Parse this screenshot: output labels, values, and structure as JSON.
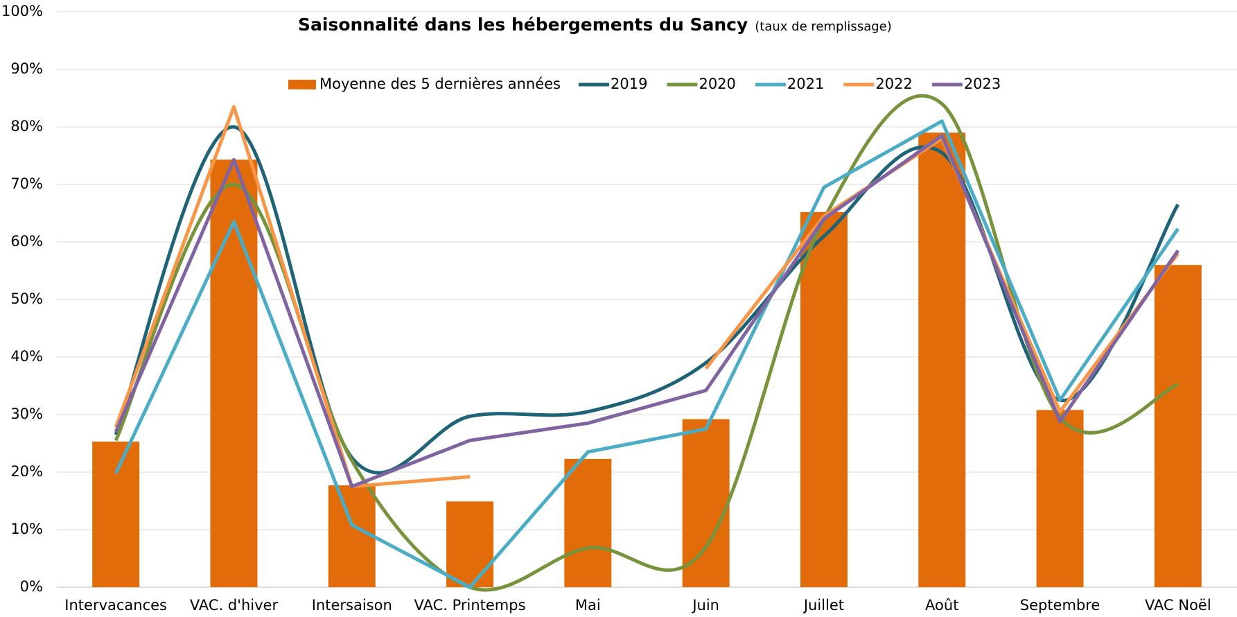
{
  "chart_data": {
    "type": "bar_line",
    "title": "Saisonnalité dans les hébergements du Sancy",
    "subtitle": "(taux de remplissage)",
    "categories": [
      "Intervacances",
      "VAC. d'hiver",
      "Intersaison",
      "VAC. Printemps",
      "Mai",
      "Juin",
      "Juillet",
      "Août",
      "Septembre",
      "VAC Noël"
    ],
    "bar": {
      "name": "Moyenne des 5 dernières années",
      "color": "#e36c0a",
      "values": [
        25.3,
        74.3,
        17.7,
        14.9,
        22.3,
        29.2,
        65.2,
        79.0,
        30.8,
        56.0
      ]
    },
    "series": [
      {
        "name": "2019",
        "color": "#1f6377",
        "smooth": true,
        "values": [
          26.5,
          80,
          22.5,
          29.7,
          30.5,
          39,
          61,
          75.5,
          32.5,
          66.5
        ]
      },
      {
        "name": "2020",
        "color": "#77933c",
        "smooth": true,
        "values": [
          25.5,
          70,
          22,
          0,
          6.8,
          7,
          64,
          84,
          29.5,
          35.2
        ]
      },
      {
        "name": "2021",
        "color": "#4bacc6",
        "smooth": false,
        "values": [
          19.8,
          63.5,
          10.8,
          0,
          23.5,
          27.5,
          69.5,
          81,
          32.5,
          62.3
        ]
      },
      {
        "name": "2022",
        "color": "#f79646",
        "smooth": false,
        "values": [
          27.8,
          83.5,
          17.5,
          19.2,
          null,
          38,
          64.5,
          78,
          30.5,
          58
        ]
      },
      {
        "name": "2023",
        "color": "#8064a2",
        "smooth": false,
        "values": [
          27,
          74.3,
          17.5,
          25.5,
          28.5,
          34.2,
          64,
          78.5,
          28.8,
          58.5
        ]
      }
    ],
    "ylim": [
      0,
      100
    ],
    "yticks": [
      {
        "value": 0,
        "label": "0%"
      },
      {
        "value": 10,
        "label": "10%"
      },
      {
        "value": 20,
        "label": "20%"
      },
      {
        "value": 30,
        "label": "30%"
      },
      {
        "value": 40,
        "label": "40%"
      },
      {
        "value": 50,
        "label": "50%"
      },
      {
        "value": 60,
        "label": "60%"
      },
      {
        "value": 70,
        "label": "70%"
      },
      {
        "value": 80,
        "label": "80%"
      },
      {
        "value": 90,
        "label": "90%"
      },
      {
        "value": 100,
        "label": "100%"
      }
    ],
    "grid": true,
    "legend": "top"
  }
}
